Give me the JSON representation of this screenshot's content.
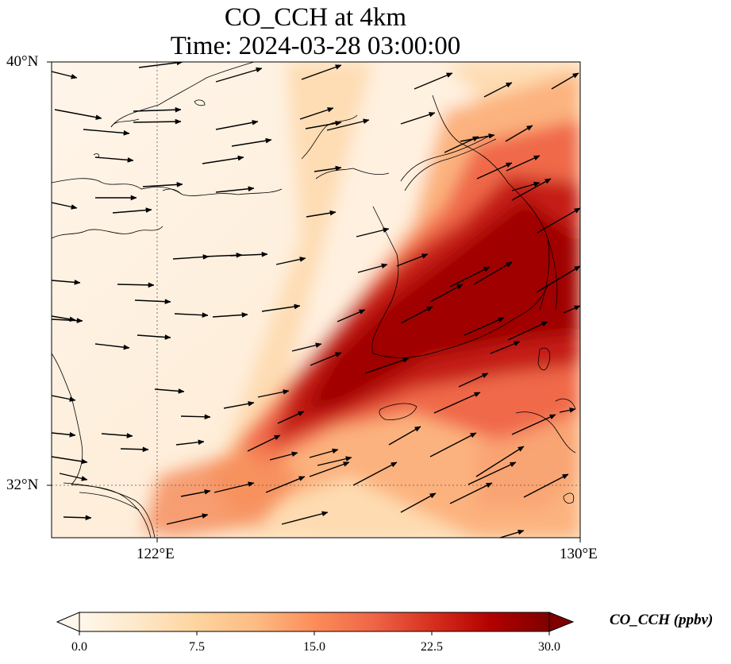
{
  "map": {
    "title_line1": "CO_CCH at 4km",
    "title_line2": "Time: 2024-03-28 03:00:00",
    "lat_labels": [
      "40°N",
      "32°N"
    ],
    "lon_labels": [
      "122°E",
      "130°E"
    ],
    "extent": {
      "lon_min": 120,
      "lon_max": 130,
      "lat_min": 31,
      "lat_max": 40
    }
  },
  "colorbar": {
    "label": "CO_CCH (ppbv)",
    "ticks": [
      "0.0",
      "7.5",
      "15.0",
      "22.5",
      "30.0"
    ],
    "range": [
      0,
      30
    ],
    "extend": "both",
    "colormap": "OrRd",
    "stops": [
      "#fff7ec",
      "#fee8c8",
      "#fdd49e",
      "#fdbb84",
      "#fc8d59",
      "#ef6548",
      "#d7301f",
      "#b30000",
      "#7f0000"
    ]
  },
  "field": {
    "variable": "CO_CCH",
    "level": "4km",
    "plume_axis": "southwest-to-northeast",
    "max_value_ppbv": 30
  },
  "wind": {
    "direction": "westerly to southwesterly"
  }
}
